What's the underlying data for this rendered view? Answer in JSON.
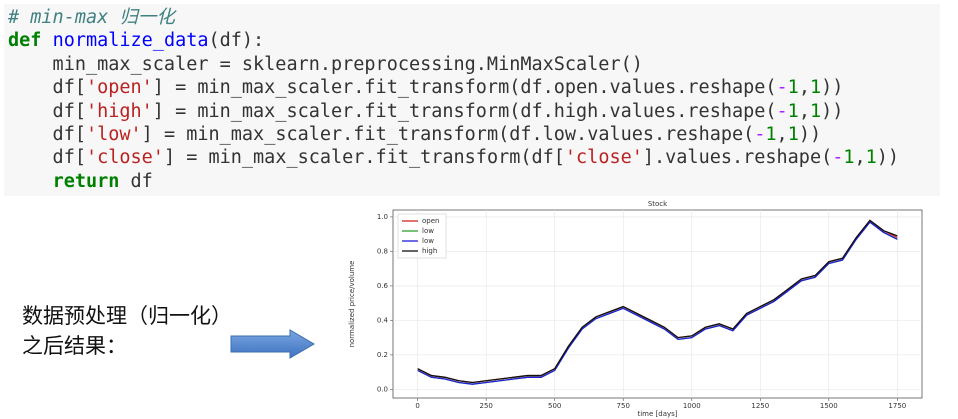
{
  "code": {
    "lines": [
      [
        {
          "text": "# min-max 归一化",
          "color": "#408080"
        }
      ],
      [
        {
          "text": "def",
          "color": "#008000"
        },
        {
          "text": " ",
          "color": "#333333"
        },
        {
          "text": "normalize_data",
          "color": "#0000ff"
        },
        {
          "text": "(df):",
          "color": "#333333"
        }
      ],
      [
        {
          "text": "    min_max_scaler = sklearn.preprocessing.MinMaxScaler()",
          "color": "#333333"
        }
      ],
      [
        {
          "text": "    df[",
          "color": "#333333"
        },
        {
          "text": "'open'",
          "color": "#ba2121"
        },
        {
          "text": "] = min_max_scaler.fit_transform(df.open.values.reshape(",
          "color": "#333333"
        },
        {
          "text": "-",
          "color": "#aa22ff"
        },
        {
          "text": "1",
          "color": "#008000"
        },
        {
          "text": ",",
          "color": "#333333"
        },
        {
          "text": "1",
          "color": "#008000"
        },
        {
          "text": "))",
          "color": "#333333"
        }
      ],
      [
        {
          "text": "    df[",
          "color": "#333333"
        },
        {
          "text": "'high'",
          "color": "#ba2121"
        },
        {
          "text": "] = min_max_scaler.fit_transform(df.high.values.reshape(",
          "color": "#333333"
        },
        {
          "text": "-",
          "color": "#aa22ff"
        },
        {
          "text": "1",
          "color": "#008000"
        },
        {
          "text": ",",
          "color": "#333333"
        },
        {
          "text": "1",
          "color": "#008000"
        },
        {
          "text": "))",
          "color": "#333333"
        }
      ],
      [
        {
          "text": "    df[",
          "color": "#333333"
        },
        {
          "text": "'low'",
          "color": "#ba2121"
        },
        {
          "text": "] = min_max_scaler.fit_transform(df.low.values.reshape(",
          "color": "#333333"
        },
        {
          "text": "-",
          "color": "#aa22ff"
        },
        {
          "text": "1",
          "color": "#008000"
        },
        {
          "text": ",",
          "color": "#333333"
        },
        {
          "text": "1",
          "color": "#008000"
        },
        {
          "text": "))",
          "color": "#333333"
        }
      ],
      [
        {
          "text": "    df[",
          "color": "#333333"
        },
        {
          "text": "'close'",
          "color": "#ba2121"
        },
        {
          "text": "] = min_max_scaler.fit_transform(df[",
          "color": "#333333"
        },
        {
          "text": "'close'",
          "color": "#ba2121"
        },
        {
          "text": "].values.reshape(",
          "color": "#333333"
        },
        {
          "text": "-",
          "color": "#aa22ff"
        },
        {
          "text": "1",
          "color": "#008000"
        },
        {
          "text": ",",
          "color": "#333333"
        },
        {
          "text": "1",
          "color": "#008000"
        },
        {
          "text": "))",
          "color": "#333333"
        }
      ],
      [
        {
          "text": "    ",
          "color": "#333333"
        },
        {
          "text": "return",
          "color": "#008000"
        },
        {
          "text": " df",
          "color": "#333333"
        }
      ]
    ]
  },
  "caption": [
    "数据预处理（归一化）",
    "之后结果："
  ],
  "chart_data": {
    "type": "line",
    "title": "Stock",
    "x_label": "time [days]",
    "y_label": "normalized price/volume",
    "x": [
      0,
      50,
      100,
      150,
      200,
      250,
      300,
      350,
      400,
      450,
      500,
      550,
      600,
      650,
      700,
      750,
      800,
      850,
      900,
      950,
      1000,
      1050,
      1100,
      1150,
      1200,
      1250,
      1300,
      1350,
      1400,
      1450,
      1500,
      1550,
      1600,
      1650,
      1700,
      1750
    ],
    "series": [
      {
        "name": "open",
        "color": "#d62728",
        "values": [
          0.12,
          0.08,
          0.07,
          0.05,
          0.04,
          0.05,
          0.06,
          0.07,
          0.08,
          0.08,
          0.12,
          0.25,
          0.36,
          0.42,
          0.45,
          0.48,
          0.44,
          0.4,
          0.36,
          0.3,
          0.31,
          0.36,
          0.38,
          0.35,
          0.44,
          0.48,
          0.52,
          0.58,
          0.64,
          0.66,
          0.74,
          0.76,
          0.88,
          0.98,
          0.92,
          0.88
        ]
      },
      {
        "name": "low",
        "color": "#2ca02c",
        "values": [
          0.11,
          0.07,
          0.06,
          0.04,
          0.03,
          0.04,
          0.05,
          0.06,
          0.07,
          0.07,
          0.11,
          0.24,
          0.35,
          0.41,
          0.44,
          0.47,
          0.43,
          0.39,
          0.35,
          0.29,
          0.3,
          0.35,
          0.37,
          0.34,
          0.43,
          0.47,
          0.51,
          0.57,
          0.63,
          0.65,
          0.73,
          0.75,
          0.87,
          0.97,
          0.91,
          0.87
        ]
      },
      {
        "name": "low",
        "color": "#1f1fd6",
        "values": [
          0.11,
          0.07,
          0.06,
          0.04,
          0.03,
          0.04,
          0.05,
          0.06,
          0.07,
          0.07,
          0.11,
          0.24,
          0.35,
          0.41,
          0.44,
          0.47,
          0.43,
          0.39,
          0.35,
          0.29,
          0.3,
          0.35,
          0.37,
          0.34,
          0.43,
          0.47,
          0.51,
          0.57,
          0.63,
          0.65,
          0.73,
          0.75,
          0.87,
          0.97,
          0.91,
          0.87
        ]
      },
      {
        "name": "high",
        "color": "#111111",
        "values": [
          0.12,
          0.08,
          0.07,
          0.05,
          0.04,
          0.05,
          0.06,
          0.07,
          0.08,
          0.08,
          0.12,
          0.25,
          0.36,
          0.42,
          0.45,
          0.48,
          0.44,
          0.4,
          0.36,
          0.3,
          0.31,
          0.36,
          0.38,
          0.35,
          0.44,
          0.48,
          0.52,
          0.58,
          0.64,
          0.66,
          0.74,
          0.76,
          0.88,
          0.98,
          0.92,
          0.89
        ]
      }
    ],
    "xlim": [
      -90,
      1840
    ],
    "ylim": [
      -0.05,
      1.04
    ],
    "xticks": [
      0,
      250,
      500,
      750,
      1000,
      1250,
      1500,
      1750
    ],
    "yticks": [
      {
        "value": 0,
        "label": "0.0"
      },
      0.2,
      0.4,
      0.6,
      0.8,
      {
        "value": 1,
        "label": "1.0"
      }
    ],
    "grid": true,
    "legend": "upper-left"
  }
}
